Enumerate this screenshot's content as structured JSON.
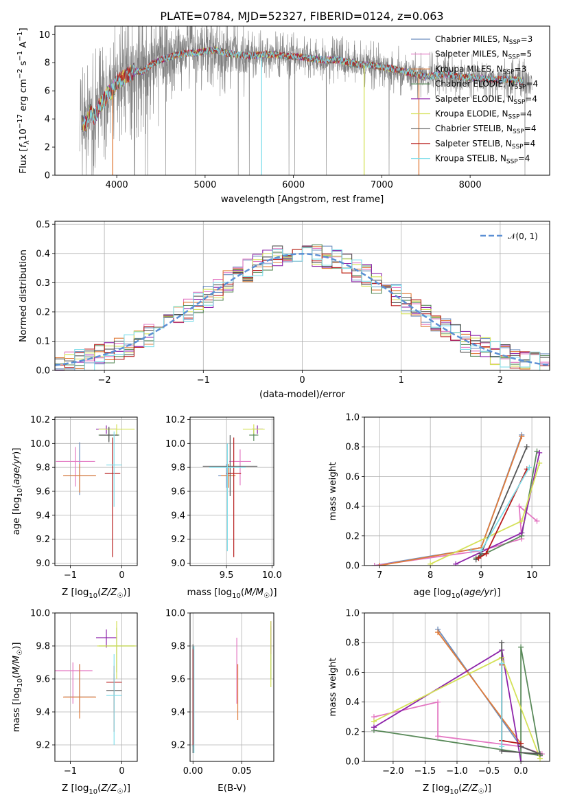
{
  "figure_title": "PLATE=0784, MJD=52327, FIBERID=0124, z=0.063",
  "colors": {
    "Chabrier MILES": "#6c8ebf",
    "Salpeter MILES": "#e377c2",
    "Kroupa MILES": "#e07b39",
    "Chabrier ELODIE": "#5a8a5a",
    "Salpeter ELODIE": "#8e24aa",
    "Kroupa ELODIE": "#d4e157",
    "Chabrier STELIB": "#555555",
    "Salpeter STELIB": "#b71c1c",
    "Kroupa STELIB": "#80deea",
    "data": "#808080",
    "normal": "#5b8fd4",
    "grid": "#b0b0b0"
  },
  "chart_data": [
    {
      "id": "spectrum",
      "type": "line",
      "xlabel": "wavelength [Angstrom, rest frame]",
      "ylabel": "Flux [f_λ10^-17 erg cm^-2 s^-1 A^-1]",
      "xlim": [
        3300,
        8900
      ],
      "ylim": [
        0,
        10.6
      ],
      "xticks": [
        4000,
        5000,
        6000,
        7000,
        8000
      ],
      "yticks": [
        0,
        2,
        4,
        6,
        8,
        10
      ],
      "grid": false,
      "legend_position": "right",
      "legend": [
        {
          "name": "Chabrier MILES",
          "nssp": "3"
        },
        {
          "name": "Salpeter MILES",
          "nssp": "5"
        },
        {
          "name": "Kroupa MILES",
          "nssp": "3"
        },
        {
          "name": "Chabrier ELODIE",
          "nssp": "4"
        },
        {
          "name": "Salpeter ELODIE",
          "nssp": "4"
        },
        {
          "name": "Kroupa ELODIE",
          "nssp": "4"
        },
        {
          "name": "Chabrier STELIB",
          "nssp": "4"
        },
        {
          "name": "Salpeter STELIB",
          "nssp": "4"
        },
        {
          "name": "Kroupa STELIB",
          "nssp": "4"
        }
      ],
      "continuum": {
        "x": [
          3600,
          3650,
          3700,
          3750,
          3800,
          3850,
          3900,
          3950,
          4000,
          4100,
          4200,
          4300,
          4400,
          4500,
          4700,
          4900,
          5100,
          5300,
          5500,
          5700,
          5900,
          6100,
          6300,
          6500,
          6700,
          6900,
          7100,
          7300,
          7500,
          7700,
          7900,
          8100,
          8300,
          8500,
          8700
        ],
        "y": [
          3.8,
          3.6,
          4.5,
          4.1,
          4.9,
          5.3,
          5.8,
          6.0,
          6.6,
          7.0,
          7.4,
          7.4,
          7.9,
          8.2,
          8.6,
          8.7,
          8.9,
          8.6,
          8.5,
          8.6,
          8.5,
          8.4,
          8.2,
          8.2,
          7.9,
          7.8,
          7.6,
          7.3,
          7.0,
          7.2,
          7.0,
          6.9,
          6.8,
          6.8,
          6.5
        ]
      }
    },
    {
      "id": "residuals",
      "type": "bar",
      "xlabel": "(data-model)/error",
      "ylabel": "Normed distribution",
      "xlim": [
        -2.5,
        2.5
      ],
      "ylim": [
        0,
        0.51
      ],
      "xticks": [
        -2,
        -1,
        0,
        1,
        2
      ],
      "yticks": [
        0.0,
        0.1,
        0.2,
        0.3,
        0.4,
        0.5
      ],
      "grid": true,
      "legend_position": "top-right",
      "normal_label": "𝒩(0, 1)",
      "bin_width": 0.1
    },
    {
      "id": "age-vs-Z",
      "type": "scatter",
      "xlabel": "Z [log10(Z/Z☉)]",
      "ylabel": "age  [log10(age/yr)]",
      "xlim": [
        -1.3,
        0.3
      ],
      "ylim": [
        8.98,
        10.22
      ],
      "xticks": [
        -1,
        0
      ],
      "yticks": [
        9.0,
        9.2,
        9.4,
        9.6,
        9.8,
        10.0,
        10.2
      ],
      "points": [
        {
          "model": "Chabrier MILES",
          "x": -0.82,
          "xerr": 0.3,
          "y": 9.73,
          "yerr_lo": 0.16,
          "yerr_hi": 0.28
        },
        {
          "model": "Salpeter MILES",
          "x": -0.9,
          "xerr": 0.38,
          "y": 9.85,
          "yerr_lo": 0.21,
          "yerr_hi": 0.12
        },
        {
          "model": "Kroupa MILES",
          "x": -0.82,
          "xerr": 0.32,
          "y": 9.73,
          "yerr_lo": 0.14,
          "yerr_hi": 0.1
        },
        {
          "model": "Chabrier ELODIE",
          "x": -0.25,
          "xerr": 0.2,
          "y": 10.07,
          "yerr_lo": 0.05,
          "yerr_hi": 0.06
        },
        {
          "model": "Salpeter ELODIE",
          "x": -0.3,
          "xerr": 0.2,
          "y": 10.12,
          "yerr_lo": 0.04,
          "yerr_hi": 0.03
        },
        {
          "model": "Kroupa ELODIE",
          "x": -0.1,
          "xerr": 0.35,
          "y": 10.12,
          "yerr_lo": 0.05,
          "yerr_hi": 0.04
        },
        {
          "model": "Chabrier STELIB",
          "x": -0.25,
          "xerr": 0.18,
          "y": 10.07,
          "yerr_lo": 0.06,
          "yerr_hi": 0.07
        },
        {
          "model": "Salpeter STELIB",
          "x": -0.18,
          "xerr": 0.15,
          "y": 9.75,
          "yerr_lo": 0.7,
          "yerr_hi": 0.3
        },
        {
          "model": "Kroupa STELIB",
          "x": -0.15,
          "xerr": 0.15,
          "y": 9.82,
          "yerr_lo": 0.35,
          "yerr_hi": 0.28
        }
      ]
    },
    {
      "id": "age-vs-mass",
      "type": "scatter",
      "xlabel": "mass [log10(M/M☉)]",
      "ylabel": "",
      "xlim": [
        9.1,
        10.02
      ],
      "ylim": [
        8.98,
        10.22
      ],
      "xticks": [
        9.5,
        10.0
      ],
      "yticks": [
        9.0,
        9.2,
        9.4,
        9.6,
        9.8,
        10.0,
        10.2
      ],
      "points": [
        {
          "model": "Chabrier MILES",
          "x": 9.5,
          "xerr": 0.09,
          "y": 9.73,
          "yerr_lo": 0.1,
          "yerr_hi": 0.1
        },
        {
          "model": "Salpeter MILES",
          "x": 9.65,
          "xerr": 0.12,
          "y": 9.85,
          "yerr_lo": 0.2,
          "yerr_hi": 0.1
        },
        {
          "model": "Kroupa MILES",
          "x": 9.52,
          "xerr": 0.08,
          "y": 9.73,
          "yerr_lo": 0.1,
          "yerr_hi": 0.1
        },
        {
          "model": "Chabrier ELODIE",
          "x": 9.8,
          "xerr": 0.05,
          "y": 10.07,
          "yerr_lo": 0.05,
          "yerr_hi": 0.05
        },
        {
          "model": "Salpeter ELODIE",
          "x": 9.84,
          "xerr": 0.06,
          "y": 10.12,
          "yerr_lo": 0.04,
          "yerr_hi": 0.03
        },
        {
          "model": "Kroupa ELODIE",
          "x": 9.8,
          "xerr": 0.12,
          "y": 10.12,
          "yerr_lo": 0.04,
          "yerr_hi": 0.04
        },
        {
          "model": "Chabrier STELIB",
          "x": 9.54,
          "xerr": 0.3,
          "y": 9.81,
          "yerr_lo": 0.25,
          "yerr_hi": 0.26
        },
        {
          "model": "Salpeter STELIB",
          "x": 9.58,
          "xerr": 0.08,
          "y": 9.75,
          "yerr_lo": 0.7,
          "yerr_hi": 0.3
        },
        {
          "model": "Kroupa STELIB",
          "x": 9.51,
          "xerr": 0.2,
          "y": 9.8,
          "yerr_lo": 0.7,
          "yerr_hi": 0.2
        }
      ]
    },
    {
      "id": "weight-vs-age",
      "type": "line",
      "xlabel": "age  [log10(age/yr)]",
      "ylabel": "mass weight",
      "xlim": [
        6.7,
        10.35
      ],
      "ylim": [
        0,
        1.0
      ],
      "xticks": [
        7,
        8,
        9,
        10
      ],
      "yticks": [
        0.0,
        0.2,
        0.4,
        0.6,
        0.8,
        1.0
      ],
      "grid": true,
      "series": [
        {
          "model": "Chabrier MILES",
          "x": [
            6.9,
            9.0,
            9.8
          ],
          "y": [
            0.0,
            0.12,
            0.88
          ]
        },
        {
          "model": "Salpeter MILES",
          "x": [
            6.9,
            9.0,
            9.8,
            9.75,
            10.1
          ],
          "y": [
            0.0,
            0.1,
            0.18,
            0.4,
            0.3
          ]
        },
        {
          "model": "Kroupa MILES",
          "x": [
            7.0,
            9.0,
            9.8
          ],
          "y": [
            0.0,
            0.12,
            0.87
          ]
        },
        {
          "model": "Chabrier ELODIE",
          "x": [
            8.9,
            9.8,
            10.1
          ],
          "y": [
            0.05,
            0.2,
            0.77
          ]
        },
        {
          "model": "Salpeter ELODIE",
          "x": [
            8.5,
            9.8,
            10.15
          ],
          "y": [
            0.01,
            0.22,
            0.76
          ]
        },
        {
          "model": "Kroupa ELODIE",
          "x": [
            8.0,
            9.8,
            10.15
          ],
          "y": [
            0.01,
            0.3,
            0.69
          ]
        },
        {
          "model": "Chabrier STELIB",
          "x": [
            8.9,
            9.0,
            9.9
          ],
          "y": [
            0.04,
            0.08,
            0.8
          ]
        },
        {
          "model": "Salpeter STELIB",
          "x": [
            8.95,
            9.1,
            9.9
          ],
          "y": [
            0.05,
            0.08,
            0.65
          ]
        },
        {
          "model": "Kroupa STELIB",
          "x": [
            8.8,
            9.0,
            9.95
          ],
          "y": [
            0.1,
            0.1,
            0.66
          ]
        }
      ]
    },
    {
      "id": "mass-vs-Z",
      "type": "scatter",
      "xlabel": "Z [log10(Z/Z☉)]",
      "ylabel": "mass [log10(M/M☉)]",
      "xlim": [
        -1.3,
        0.3
      ],
      "ylim": [
        9.1,
        10.0
      ],
      "xticks": [
        -1,
        0
      ],
      "yticks": [
        9.2,
        9.4,
        9.6,
        9.8,
        10.0
      ],
      "points": [
        {
          "model": "Chabrier MILES",
          "x": -0.82,
          "xerr": 0.3,
          "y": 9.49,
          "yerr_lo": 0.09,
          "yerr_hi": 0.2
        },
        {
          "model": "Salpeter MILES",
          "x": -0.95,
          "xerr": 0.38,
          "y": 9.65,
          "yerr_lo": 0.2,
          "yerr_hi": 0.05
        },
        {
          "model": "Kroupa MILES",
          "x": -0.82,
          "xerr": 0.32,
          "y": 9.49,
          "yerr_lo": 0.13,
          "yerr_hi": 0.2
        },
        {
          "model": "Chabrier ELODIE",
          "x": -0.1,
          "xerr": 0.35,
          "y": 9.8,
          "yerr_lo": 0.16,
          "yerr_hi": 0.11
        },
        {
          "model": "Salpeter ELODIE",
          "x": -0.3,
          "xerr": 0.2,
          "y": 9.85,
          "yerr_lo": 0.06,
          "yerr_hi": 0.05
        },
        {
          "model": "Kroupa ELODIE",
          "x": -0.1,
          "xerr": 0.38,
          "y": 9.8,
          "yerr_lo": 0.2,
          "yerr_hi": 0.15
        },
        {
          "model": "Chabrier STELIB",
          "x": -0.15,
          "xerr": 0.15,
          "y": 9.53,
          "yerr_lo": 0.12,
          "yerr_hi": 0.1
        },
        {
          "model": "Salpeter STELIB",
          "x": -0.15,
          "xerr": 0.15,
          "y": 9.58,
          "yerr_lo": 0.3,
          "yerr_hi": 0.1
        },
        {
          "model": "Kroupa STELIB",
          "x": -0.15,
          "xerr": 0.15,
          "y": 9.5,
          "yerr_lo": 0.3,
          "yerr_hi": 0.25
        }
      ]
    },
    {
      "id": "mass-vs-EBV",
      "type": "scatter",
      "xlabel": "E(B-V)",
      "ylabel": "",
      "xlim": [
        -0.003,
        0.083
      ],
      "ylim": [
        9.1,
        10.0
      ],
      "xticks": [
        0.0,
        0.05
      ],
      "yticks": [
        9.2,
        9.4,
        9.6,
        9.8,
        10.0
      ],
      "points": [
        {
          "model": "Chabrier MILES",
          "x": 0.0,
          "y": 9.49,
          "yerr_lo": 0.3,
          "yerr_hi": 0.3
        },
        {
          "model": "Salpeter MILES",
          "x": 0.045,
          "y": 9.65,
          "yerr_lo": 0.2,
          "yerr_hi": 0.2
        },
        {
          "model": "Kroupa MILES",
          "x": 0.046,
          "y": 9.49,
          "yerr_lo": 0.14,
          "yerr_hi": 0.2
        },
        {
          "model": "Chabrier ELODIE",
          "x": 0.08,
          "y": 9.8,
          "yerr_lo": 0.2,
          "yerr_hi": 0.12
        },
        {
          "model": "Salpeter ELODIE",
          "x": 0.08,
          "y": 9.85,
          "yerr_lo": 0.1,
          "yerr_hi": 0.1
        },
        {
          "model": "Kroupa ELODIE",
          "x": 0.08,
          "y": 9.75,
          "yerr_lo": 0.2,
          "yerr_hi": 0.2
        },
        {
          "model": "Chabrier STELIB",
          "x": 0.0,
          "y": 9.53,
          "yerr_lo": 0.38,
          "yerr_hi": 0.28
        },
        {
          "model": "Salpeter STELIB",
          "x": 0.0,
          "y": 9.58,
          "yerr_lo": 0.38,
          "yerr_hi": 0.2
        },
        {
          "model": "Kroupa STELIB",
          "x": 0.001,
          "y": 9.5,
          "yerr_lo": 0.35,
          "yerr_hi": 0.3
        }
      ]
    },
    {
      "id": "weight-vs-Z",
      "type": "line",
      "xlabel": "Z [log10(Z/Z☉)]",
      "ylabel": "mass weight",
      "xlim": [
        -2.45,
        0.45
      ],
      "ylim": [
        0,
        1.0
      ],
      "xticks": [
        -2.0,
        -1.5,
        -1.0,
        -0.5,
        0.0
      ],
      "yticks": [
        0.0,
        0.2,
        0.4,
        0.6,
        0.8,
        1.0
      ],
      "grid": true,
      "series": [
        {
          "model": "Chabrier MILES",
          "x": [
            -1.3,
            0.0
          ],
          "y": [
            0.89,
            0.1
          ]
        },
        {
          "model": "Salpeter MILES",
          "x": [
            -2.3,
            -1.3,
            -1.3,
            0.0,
            0.33
          ],
          "y": [
            0.3,
            0.4,
            0.17,
            0.1,
            0.05
          ]
        },
        {
          "model": "Kroupa MILES",
          "x": [
            -1.3,
            0.0
          ],
          "y": [
            0.87,
            0.12
          ]
        },
        {
          "model": "Chabrier ELODIE",
          "x": [
            -2.3,
            0.3,
            0.0,
            0.0
          ],
          "y": [
            0.21,
            0.04,
            0.77,
            0.0
          ]
        },
        {
          "model": "Salpeter ELODIE",
          "x": [
            -2.3,
            -0.3,
            0.0
          ],
          "y": [
            0.23,
            0.75,
            0.0
          ]
        },
        {
          "model": "Kroupa ELODIE",
          "x": [
            -2.3,
            -0.3,
            0.3
          ],
          "y": [
            0.27,
            0.7,
            0.02
          ]
        },
        {
          "model": "Chabrier STELIB",
          "x": [
            -0.3,
            -0.3,
            0.3,
            0.0
          ],
          "y": [
            0.8,
            0.07,
            0.05,
            0.1
          ]
        },
        {
          "model": "Salpeter STELIB",
          "x": [
            -0.3,
            -0.3,
            0.0
          ],
          "y": [
            0.65,
            0.14,
            0.12
          ]
        },
        {
          "model": "Kroupa STELIB",
          "x": [
            -0.3,
            -0.3
          ],
          "y": [
            0.66,
            0.1
          ]
        }
      ]
    }
  ]
}
